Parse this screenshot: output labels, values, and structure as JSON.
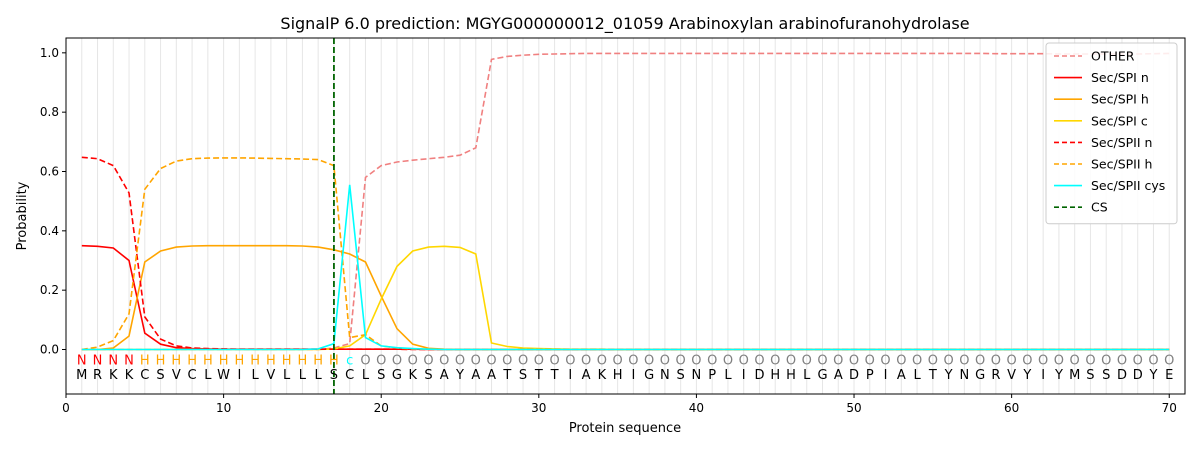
{
  "chart_data": {
    "type": "line",
    "title": "SignalP 6.0 prediction: MGYG000000012_01059 Arabinoxylan arabinofuranohydrolase",
    "xlabel": "Protein sequence",
    "ylabel": "Probability",
    "xlim": [
      0,
      71
    ],
    "ylim": [
      -0.15,
      1.05
    ],
    "x_ticks": [
      0,
      10,
      20,
      30,
      40,
      50,
      60,
      70
    ],
    "y_ticks": [
      0.0,
      0.2,
      0.4,
      0.6,
      0.8,
      1.0
    ],
    "x_tick_labels": [
      "0",
      "10",
      "20",
      "30",
      "40",
      "50",
      "60",
      "70"
    ],
    "y_tick_labels": [
      "0.0",
      "0.2",
      "0.4",
      "0.6",
      "0.8",
      "1.0"
    ],
    "grid": "vertical lines at every residue",
    "legend_position": "top-right",
    "sequence": [
      "M",
      "R",
      "K",
      "K",
      "C",
      "S",
      "V",
      "C",
      "L",
      "W",
      "I",
      "L",
      "V",
      "L",
      "L",
      "L",
      "S",
      "C",
      "L",
      "S",
      "G",
      "K",
      "S",
      "A",
      "Y",
      "A",
      "A",
      "T",
      "S",
      "T",
      "T",
      "I",
      "A",
      "K",
      "H",
      "I",
      "G",
      "N",
      "S",
      "N",
      "P",
      "L",
      "I",
      "D",
      "H",
      "H",
      "L",
      "G",
      "A",
      "D",
      "P",
      "I",
      "A",
      "L",
      "T",
      "Y",
      "N",
      "G",
      "R",
      "V",
      "Y",
      "I",
      "Y",
      "M",
      "S",
      "S",
      "D",
      "D",
      "Y",
      "E"
    ],
    "region_labels": [
      "N",
      "N",
      "N",
      "N",
      "H",
      "H",
      "H",
      "H",
      "H",
      "H",
      "H",
      "H",
      "H",
      "H",
      "H",
      "H",
      "H",
      "c",
      "O",
      "O",
      "O",
      "O",
      "O",
      "O",
      "O",
      "O",
      "O",
      "O",
      "O",
      "O",
      "O",
      "O",
      "O",
      "O",
      "O",
      "O",
      "O",
      "O",
      "O",
      "O",
      "O",
      "O",
      "O",
      "O",
      "O",
      "O",
      "O",
      "O",
      "O",
      "O",
      "O",
      "O",
      "O",
      "O",
      "O",
      "O",
      "O",
      "O",
      "O",
      "O",
      "O",
      "O",
      "O",
      "O",
      "O",
      "O",
      "O",
      "O",
      "O",
      "O"
    ],
    "region_colors": {
      "N": "#ff0000",
      "H": "#ffa500",
      "c": "#00ffff",
      "O": "#808080"
    },
    "cs_position": 17,
    "series": [
      {
        "name": "OTHER",
        "color": "#f08080",
        "dash": true,
        "values": [
          0.0,
          0.0,
          0.0,
          0.0,
          0.0,
          0.0,
          0.0,
          0.0,
          0.0,
          0.0,
          0.0,
          0.0,
          0.0,
          0.0,
          0.0,
          0.0,
          0.005,
          0.02,
          0.58,
          0.62,
          0.632,
          0.638,
          0.643,
          0.648,
          0.655,
          0.68,
          0.978,
          0.988,
          0.992,
          0.995,
          0.996,
          0.997,
          0.998,
          0.998,
          0.998,
          0.998,
          0.998,
          0.998,
          0.998,
          0.998,
          0.998,
          0.998,
          0.998,
          0.998,
          0.998,
          0.998,
          0.998,
          0.998,
          0.998,
          0.998,
          0.998,
          0.998,
          0.998,
          0.998,
          0.998,
          0.998,
          0.998,
          0.998,
          0.997,
          0.997,
          0.997,
          0.997,
          0.996,
          0.996,
          0.996,
          0.996,
          0.996,
          0.996,
          0.997,
          0.998
        ]
      },
      {
        "name": "Sec/SPI n",
        "color": "#ff0000",
        "dash": false,
        "values": [
          0.35,
          0.348,
          0.342,
          0.3,
          0.055,
          0.018,
          0.006,
          0.003,
          0.002,
          0.001,
          0.001,
          0.001,
          0.001,
          0.001,
          0.001,
          0.001,
          0.001,
          0.001,
          0.001,
          0.001,
          0.001,
          0.001,
          0.0,
          0.0,
          0.0,
          0.0,
          0.0,
          0.0,
          0.0,
          0.0,
          0.0,
          0.0,
          0.0,
          0.0,
          0.0,
          0.0,
          0.0,
          0.0,
          0.0,
          0.0,
          0.0,
          0.0,
          0.0,
          0.0,
          0.0,
          0.0,
          0.0,
          0.0,
          0.0,
          0.0,
          0.0,
          0.0,
          0.0,
          0.0,
          0.0,
          0.0,
          0.0,
          0.0,
          0.0,
          0.0,
          0.0,
          0.0,
          0.0,
          0.0,
          0.0,
          0.0,
          0.0,
          0.0,
          0.0,
          0.0
        ]
      },
      {
        "name": "Sec/SPI h",
        "color": "#ffa500",
        "dash": false,
        "values": [
          0.0,
          0.0,
          0.005,
          0.045,
          0.295,
          0.332,
          0.345,
          0.349,
          0.35,
          0.35,
          0.35,
          0.35,
          0.35,
          0.35,
          0.349,
          0.345,
          0.336,
          0.322,
          0.295,
          0.18,
          0.07,
          0.018,
          0.004,
          0.001,
          0.0,
          0.0,
          0.0,
          0.0,
          0.0,
          0.0,
          0.0,
          0.0,
          0.0,
          0.0,
          0.0,
          0.0,
          0.0,
          0.0,
          0.0,
          0.0,
          0.0,
          0.0,
          0.0,
          0.0,
          0.0,
          0.0,
          0.0,
          0.0,
          0.0,
          0.0,
          0.0,
          0.0,
          0.0,
          0.0,
          0.0,
          0.0,
          0.0,
          0.0,
          0.0,
          0.0,
          0.0,
          0.0,
          0.0,
          0.0,
          0.0,
          0.0,
          0.0,
          0.0,
          0.0,
          0.0
        ]
      },
      {
        "name": "Sec/SPI c",
        "color": "#ffd700",
        "dash": false,
        "values": [
          0.0,
          0.0,
          0.0,
          0.0,
          0.0,
          0.0,
          0.0,
          0.0,
          0.0,
          0.0,
          0.0,
          0.0,
          0.0,
          0.0,
          0.0,
          0.0,
          0.002,
          0.012,
          0.05,
          0.17,
          0.28,
          0.332,
          0.345,
          0.348,
          0.344,
          0.322,
          0.022,
          0.01,
          0.005,
          0.003,
          0.002,
          0.001,
          0.001,
          0.001,
          0.0,
          0.0,
          0.0,
          0.0,
          0.0,
          0.0,
          0.0,
          0.0,
          0.0,
          0.0,
          0.0,
          0.0,
          0.0,
          0.0,
          0.0,
          0.0,
          0.0,
          0.0,
          0.0,
          0.0,
          0.0,
          0.0,
          0.0,
          0.0,
          0.0,
          0.0,
          0.0,
          0.0,
          0.0,
          0.0,
          0.0,
          0.0,
          0.0,
          0.0,
          0.0,
          0.0
        ]
      },
      {
        "name": "Sec/SPII n",
        "color": "#ff0000",
        "dash": true,
        "values": [
          0.648,
          0.643,
          0.62,
          0.528,
          0.11,
          0.035,
          0.012,
          0.005,
          0.003,
          0.002,
          0.001,
          0.001,
          0.001,
          0.001,
          0.001,
          0.001,
          0.001,
          0.001,
          0.001,
          0.001,
          0.001,
          0.0,
          0.0,
          0.0,
          0.0,
          0.0,
          0.0,
          0.0,
          0.0,
          0.0,
          0.0,
          0.0,
          0.0,
          0.0,
          0.0,
          0.0,
          0.0,
          0.0,
          0.0,
          0.0,
          0.0,
          0.0,
          0.0,
          0.0,
          0.0,
          0.0,
          0.0,
          0.0,
          0.0,
          0.0,
          0.0,
          0.0,
          0.0,
          0.0,
          0.0,
          0.0,
          0.0,
          0.0,
          0.0,
          0.0,
          0.0,
          0.0,
          0.0,
          0.0,
          0.0,
          0.0,
          0.0,
          0.0,
          0.0,
          0.0
        ]
      },
      {
        "name": "Sec/SPII h",
        "color": "#ffa500",
        "dash": true,
        "values": [
          0.0,
          0.008,
          0.03,
          0.12,
          0.54,
          0.61,
          0.635,
          0.643,
          0.645,
          0.646,
          0.646,
          0.645,
          0.644,
          0.643,
          0.642,
          0.64,
          0.62,
          0.04,
          0.05,
          0.012,
          0.005,
          0.002,
          0.001,
          0.0,
          0.0,
          0.0,
          0.0,
          0.0,
          0.0,
          0.0,
          0.0,
          0.0,
          0.0,
          0.0,
          0.0,
          0.0,
          0.0,
          0.0,
          0.0,
          0.0,
          0.0,
          0.0,
          0.0,
          0.0,
          0.0,
          0.0,
          0.0,
          0.0,
          0.0,
          0.0,
          0.0,
          0.0,
          0.0,
          0.0,
          0.0,
          0.0,
          0.0,
          0.0,
          0.0,
          0.0,
          0.0,
          0.0,
          0.0,
          0.0,
          0.0,
          0.0,
          0.0,
          0.0,
          0.0,
          0.0
        ]
      },
      {
        "name": "Sec/SPII cys",
        "color": "#00ffff",
        "dash": false,
        "values": [
          0.0,
          0.0,
          0.0,
          0.0,
          0.0,
          0.0,
          0.0,
          0.0,
          0.0,
          0.0,
          0.0,
          0.0,
          0.0,
          0.0,
          0.0,
          0.002,
          0.02,
          0.555,
          0.04,
          0.012,
          0.006,
          0.003,
          0.001,
          0.0,
          0.0,
          0.0,
          0.0,
          0.0,
          0.0,
          0.0,
          0.0,
          0.0,
          0.0,
          0.0,
          0.0,
          0.0,
          0.0,
          0.0,
          0.0,
          0.0,
          0.0,
          0.0,
          0.0,
          0.0,
          0.0,
          0.0,
          0.0,
          0.0,
          0.0,
          0.0,
          0.0,
          0.0,
          0.0,
          0.0,
          0.0,
          0.0,
          0.0,
          0.0,
          0.0,
          0.0,
          0.0,
          0.0,
          0.0,
          0.0,
          0.0,
          0.0,
          0.0,
          0.0,
          0.0,
          0.0
        ]
      }
    ],
    "cs_legend": {
      "name": "CS",
      "color": "#006400"
    }
  }
}
